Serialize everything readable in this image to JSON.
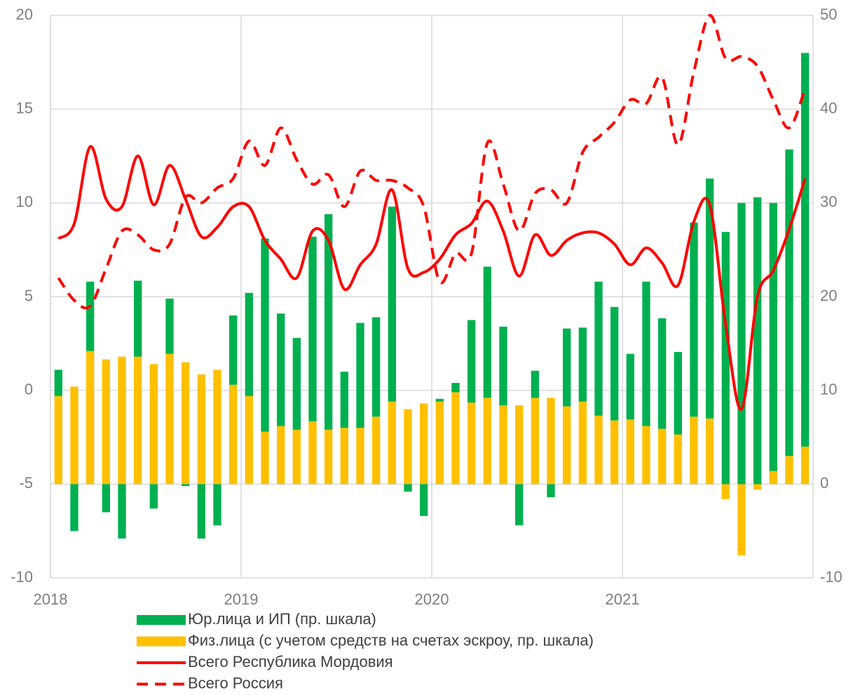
{
  "chart_data": {
    "type": "combo",
    "categories": [
      "2018",
      null,
      null,
      null,
      null,
      null,
      null,
      null,
      null,
      null,
      null,
      null,
      "2019",
      null,
      null,
      null,
      null,
      null,
      null,
      null,
      null,
      null,
      null,
      null,
      "2020",
      null,
      null,
      null,
      null,
      null,
      null,
      null,
      null,
      null,
      null,
      null,
      "2021",
      null,
      null,
      null,
      null,
      null,
      null,
      null,
      null,
      null,
      null,
      null
    ],
    "ylim": [
      -10,
      20
    ],
    "yticks": [
      -10,
      -5,
      0,
      5,
      10,
      15,
      20
    ],
    "y2lim": [
      -10,
      50
    ],
    "y2ticks": [
      -10,
      0,
      10,
      20,
      30,
      40,
      50
    ],
    "grid": true,
    "legend": "bottom",
    "stacked": true,
    "series": [
      {
        "name": "Юр.лица и ИП (пр. шкала)",
        "type": "bar",
        "axis": "y2",
        "color": "#00b050",
        "values": [
          2.8,
          -5,
          7.4,
          -3,
          -5.8,
          8.1,
          -2.6,
          5.9,
          -0.2,
          -5.8,
          -4.4,
          7.4,
          11,
          20.6,
          12,
          9.8,
          19.7,
          23,
          6,
          11.2,
          10.6,
          20.8,
          -0.8,
          -3.4,
          0.3,
          1,
          8.8,
          14,
          8.4,
          -4.4,
          2.9,
          -1.4,
          8.3,
          7.9,
          14.3,
          12.1,
          7,
          15.4,
          11.8,
          8.8,
          20.7,
          25.6,
          26.9,
          30,
          30.6,
          28.6,
          32.7,
          42
        ]
      },
      {
        "name": "Физ.лица (с учетом средств на счетах эскроу, пр. шкала)",
        "type": "bar",
        "axis": "y2",
        "color": "#ffc000",
        "values": [
          9.4,
          10.4,
          14.2,
          13.3,
          13.6,
          13.6,
          12.8,
          13.9,
          13,
          11.7,
          12.2,
          10.6,
          9.4,
          5.6,
          6.2,
          5.8,
          6.7,
          5.8,
          6,
          6,
          7.2,
          8.8,
          8,
          8.6,
          8.8,
          9.8,
          8.7,
          9.2,
          8.4,
          8.4,
          9.2,
          9.2,
          8.3,
          8.8,
          7.3,
          6.8,
          6.9,
          6.2,
          5.9,
          5.3,
          7.2,
          7,
          -1.6,
          -7.6,
          -0.6,
          1.4,
          3,
          4
        ]
      },
      {
        "name": "Всего Республика Мордовия",
        "type": "line",
        "axis": "y",
        "color": "#ff0000",
        "style": "solid",
        "values": [
          8.1,
          8.9,
          13,
          10.2,
          9.8,
          12.5,
          9.9,
          12,
          10.2,
          8.2,
          8.7,
          9.8,
          9.8,
          8,
          7,
          6,
          8.5,
          8,
          5.4,
          6.7,
          7.8,
          10.7,
          6.5,
          6.3,
          7,
          8.3,
          8.9,
          10.1,
          8.5,
          6.1,
          8.3,
          7.2,
          8,
          8.4,
          8.4,
          7.8,
          6.7,
          7.6,
          6.8,
          5.6,
          9,
          9.9,
          3.5,
          -1,
          5,
          6.4,
          8.6,
          11.3
        ]
      },
      {
        "name": "Всего Россия",
        "type": "line",
        "axis": "y",
        "color": "#ff0000",
        "style": "dashed",
        "values": [
          6,
          4.8,
          4.5,
          6.5,
          8.5,
          8.3,
          7.5,
          7.8,
          10.3,
          10,
          10.8,
          11.3,
          13.3,
          12,
          14,
          12.3,
          11,
          11.5,
          9.8,
          11.7,
          11.2,
          11.2,
          10.8,
          9.8,
          5.8,
          7.3,
          7.3,
          13.2,
          11,
          8.5,
          10.5,
          10.7,
          10,
          12.7,
          13.5,
          14.3,
          15.5,
          15.3,
          16.7,
          13.1,
          17,
          20,
          17.7,
          17.8,
          17.3,
          15.5,
          14,
          16.1
        ]
      }
    ]
  }
}
